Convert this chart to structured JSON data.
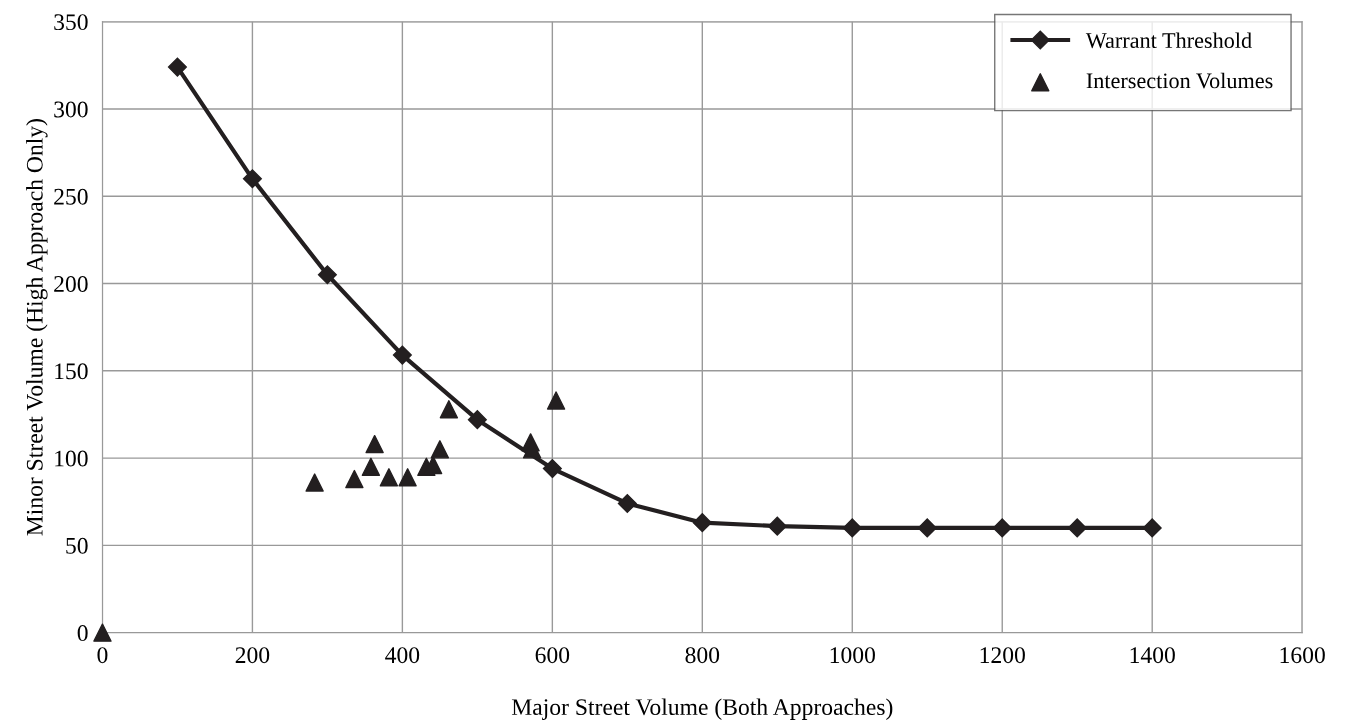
{
  "chart_data": {
    "type": "line",
    "xlabel": "Major Street Volume (Both Approaches)",
    "ylabel": "Minor Street Volume (High Approach Only)",
    "xlim": [
      0,
      1600
    ],
    "xticks": [
      0,
      200,
      400,
      600,
      800,
      1000,
      1200,
      1400,
      1600
    ],
    "ylim": [
      0,
      350
    ],
    "yticks": [
      0,
      50,
      100,
      150,
      200,
      250,
      300,
      350
    ],
    "grid": true,
    "legend": "top right",
    "series": [
      {
        "name": "Warrant Threshold",
        "marker": "diamond",
        "line_style": "solid",
        "color": "#231f20",
        "x": [
          100,
          200,
          300,
          400,
          500,
          600,
          700,
          800,
          900,
          1000,
          1100,
          1200,
          1300,
          1400
        ],
        "values": [
          324,
          260,
          205,
          159,
          122,
          94,
          74,
          63,
          61,
          60,
          60,
          60,
          60,
          60
        ]
      },
      {
        "name": "Intersection Volumes",
        "type": "scatter",
        "marker": "triangle",
        "color": "#231f20",
        "x": [
          0,
          283,
          336,
          358,
          363,
          382,
          407,
          432,
          441,
          450,
          462,
          571,
          573,
          605
        ],
        "values": [
          0,
          86,
          88,
          95,
          108,
          89,
          89,
          95,
          96,
          105,
          128,
          109,
          105,
          133
        ]
      }
    ]
  }
}
